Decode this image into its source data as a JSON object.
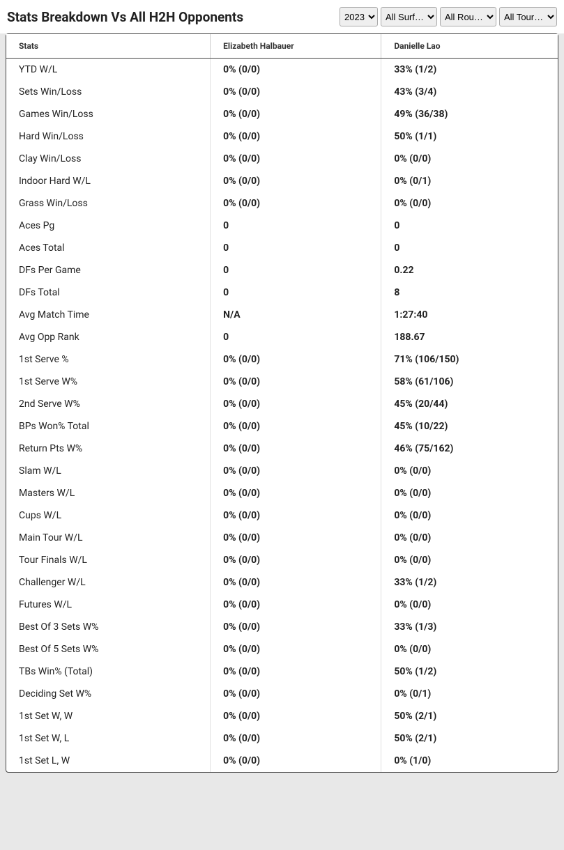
{
  "header": {
    "title": "Stats Breakdown Vs All H2H Opponents"
  },
  "filters": {
    "year": "2023",
    "surface": "All Surf…",
    "round": "All Rou…",
    "tour": "All Tour…"
  },
  "table": {
    "columns": [
      "Stats",
      "Elizabeth Halbauer",
      "Danielle Lao"
    ],
    "rows": [
      {
        "stat": "YTD W/L",
        "p1": "0% (0/0)",
        "p2": "33% (1/2)"
      },
      {
        "stat": "Sets Win/Loss",
        "p1": "0% (0/0)",
        "p2": "43% (3/4)"
      },
      {
        "stat": "Games Win/Loss",
        "p1": "0% (0/0)",
        "p2": "49% (36/38)"
      },
      {
        "stat": "Hard Win/Loss",
        "p1": "0% (0/0)",
        "p2": "50% (1/1)"
      },
      {
        "stat": "Clay Win/Loss",
        "p1": "0% (0/0)",
        "p2": "0% (0/0)"
      },
      {
        "stat": "Indoor Hard W/L",
        "p1": "0% (0/0)",
        "p2": "0% (0/1)"
      },
      {
        "stat": "Grass Win/Loss",
        "p1": "0% (0/0)",
        "p2": "0% (0/0)"
      },
      {
        "stat": "Aces Pg",
        "p1": "0",
        "p2": "0"
      },
      {
        "stat": "Aces Total",
        "p1": "0",
        "p2": "0"
      },
      {
        "stat": "DFs Per Game",
        "p1": "0",
        "p2": "0.22"
      },
      {
        "stat": "DFs Total",
        "p1": "0",
        "p2": "8"
      },
      {
        "stat": "Avg Match Time",
        "p1": "N/A",
        "p2": "1:27:40"
      },
      {
        "stat": "Avg Opp Rank",
        "p1": "0",
        "p2": "188.67"
      },
      {
        "stat": "1st Serve %",
        "p1": "0% (0/0)",
        "p2": "71% (106/150)"
      },
      {
        "stat": "1st Serve W%",
        "p1": "0% (0/0)",
        "p2": "58% (61/106)"
      },
      {
        "stat": "2nd Serve W%",
        "p1": "0% (0/0)",
        "p2": "45% (20/44)"
      },
      {
        "stat": "BPs Won% Total",
        "p1": "0% (0/0)",
        "p2": "45% (10/22)"
      },
      {
        "stat": "Return Pts W%",
        "p1": "0% (0/0)",
        "p2": "46% (75/162)"
      },
      {
        "stat": "Slam W/L",
        "p1": "0% (0/0)",
        "p2": "0% (0/0)"
      },
      {
        "stat": "Masters W/L",
        "p1": "0% (0/0)",
        "p2": "0% (0/0)"
      },
      {
        "stat": "Cups W/L",
        "p1": "0% (0/0)",
        "p2": "0% (0/0)"
      },
      {
        "stat": "Main Tour W/L",
        "p1": "0% (0/0)",
        "p2": "0% (0/0)"
      },
      {
        "stat": "Tour Finals W/L",
        "p1": "0% (0/0)",
        "p2": "0% (0/0)"
      },
      {
        "stat": "Challenger W/L",
        "p1": "0% (0/0)",
        "p2": "33% (1/2)"
      },
      {
        "stat": "Futures W/L",
        "p1": "0% (0/0)",
        "p2": "0% (0/0)"
      },
      {
        "stat": "Best Of 3 Sets W%",
        "p1": "0% (0/0)",
        "p2": "33% (1/3)"
      },
      {
        "stat": "Best Of 5 Sets W%",
        "p1": "0% (0/0)",
        "p2": "0% (0/0)"
      },
      {
        "stat": "TBs Win% (Total)",
        "p1": "0% (0/0)",
        "p2": "50% (1/2)"
      },
      {
        "stat": "Deciding Set W%",
        "p1": "0% (0/0)",
        "p2": "0% (0/1)"
      },
      {
        "stat": "1st Set W, W",
        "p1": "0% (0/0)",
        "p2": "50% (2/1)"
      },
      {
        "stat": "1st Set W, L",
        "p1": "0% (0/0)",
        "p2": "50% (2/1)"
      },
      {
        "stat": "1st Set L, W",
        "p1": "0% (0/0)",
        "p2": "0% (1/0)"
      }
    ]
  },
  "style": {
    "background_color": "#e8e8e8",
    "card_background": "#ffffff",
    "border_color": "#444444",
    "cell_border_color": "#e0e0e0",
    "text_color": "#222222",
    "title_fontsize": 19,
    "header_fontsize": 12,
    "cell_fontsize": 14
  }
}
